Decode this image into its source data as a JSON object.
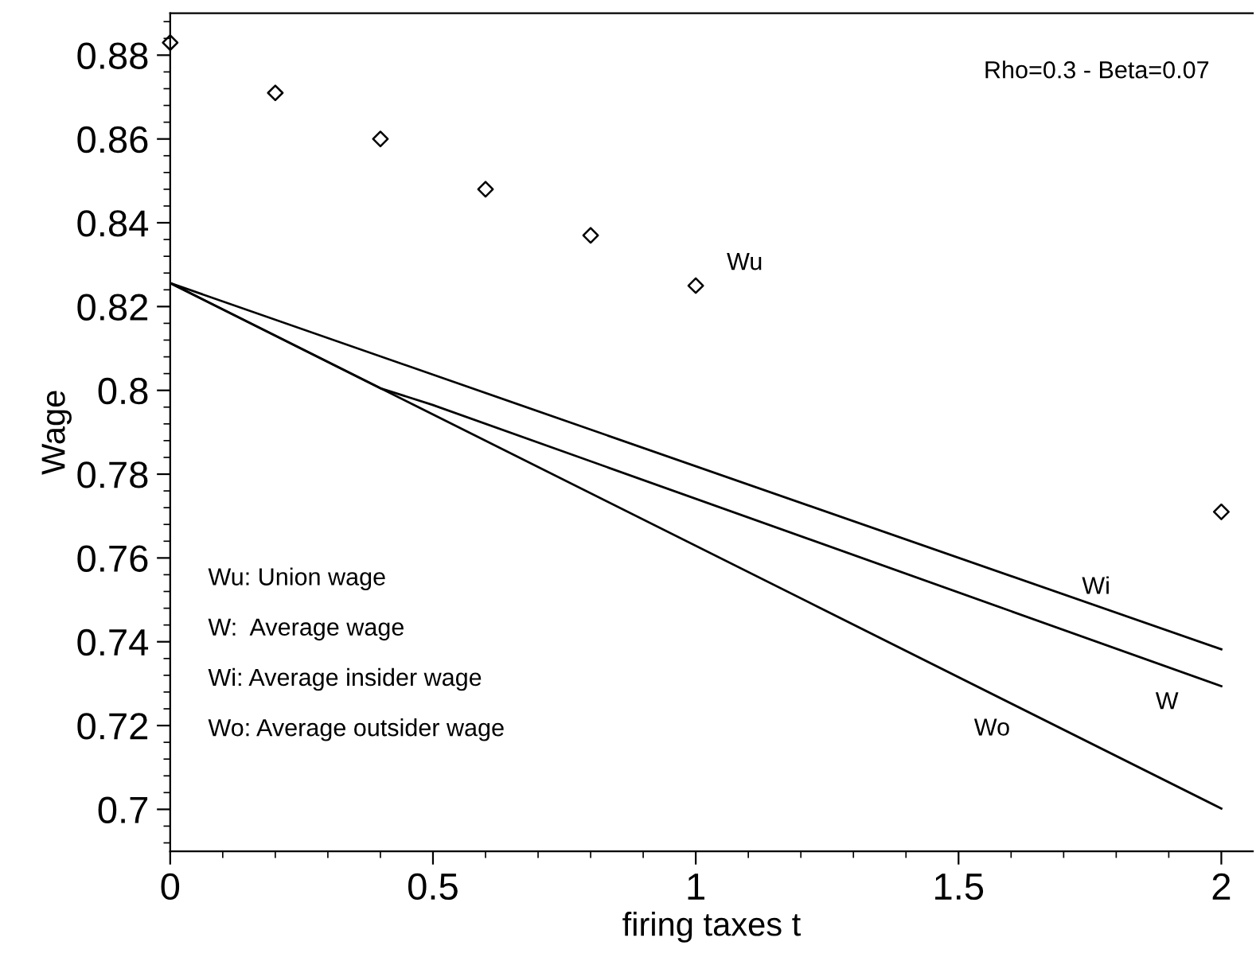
{
  "chart_data": {
    "type": "line",
    "xlabel": "firing taxes t",
    "ylabel": "Wage",
    "xlim": [
      0,
      2.06
    ],
    "ylim": [
      0.69,
      0.89
    ],
    "xticks": [
      0,
      0.5,
      1,
      1.5,
      2
    ],
    "yticks": [
      0.7,
      0.72,
      0.74,
      0.76,
      0.78,
      0.8,
      0.82,
      0.84,
      0.86,
      0.88
    ],
    "grid": false,
    "legend": false,
    "series": [
      {
        "type": "scatter",
        "name": "Wu",
        "marker": "diamond",
        "color": "#000000",
        "x": [
          0,
          0.2,
          0.4,
          0.6,
          0.8,
          1.0,
          2.0
        ],
        "values": [
          0.883,
          0.871,
          0.86,
          0.848,
          0.837,
          0.825,
          0.771
        ]
      },
      {
        "name": "Wi",
        "marker": "none",
        "color": "#000000",
        "x": [
          0,
          2
        ],
        "values": [
          0.8256,
          0.7382
        ]
      },
      {
        "name": "W",
        "marker": "none",
        "color": "#000000",
        "x": [
          0,
          0.4,
          0.5,
          2
        ],
        "values": [
          0.8256,
          0.8005,
          0.7965,
          0.7294
        ]
      },
      {
        "name": "Wo",
        "marker": "none",
        "color": "#000000",
        "x": [
          0,
          2
        ],
        "values": [
          0.8256,
          0.7002
        ]
      }
    ],
    "annotations": [
      "Rho=0.3 - Beta=0.07",
      "Wu: Union wage",
      "W:  Average wage",
      "Wi: Average insider wage",
      "Wo: Average outsider wage"
    ]
  }
}
